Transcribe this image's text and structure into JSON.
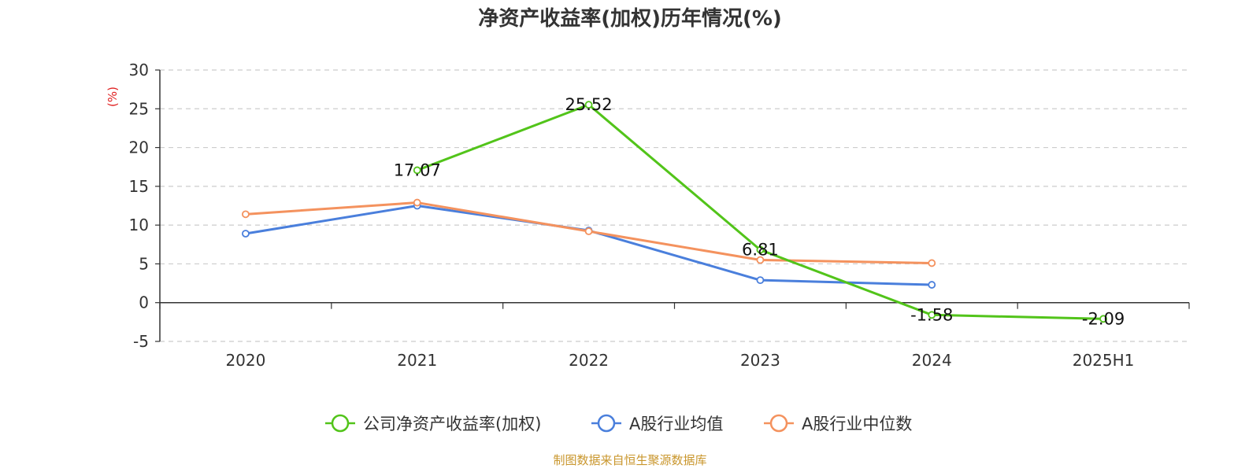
{
  "source": "制图数据来自恒生聚源数据库",
  "colors": {
    "ylabel": "#e02020",
    "source": "#c9962c",
    "axis": "#333333",
    "grid": "#cccccc"
  },
  "chart_data": {
    "type": "line",
    "title": "净资产收益率(加权)历年情况(%)",
    "xlabel": "",
    "ylabel": "(%)",
    "categories": [
      "2020",
      "2021",
      "2022",
      "2023",
      "2024",
      "2025H1"
    ],
    "ylim": [
      -5,
      30
    ],
    "yticks": [
      -5,
      0,
      5,
      10,
      15,
      20,
      25,
      30
    ],
    "grid": true,
    "legend_position": "bottom-center",
    "series": [
      {
        "name": "公司净资产收益率(加权)",
        "color": "#52c41a",
        "values": [
          null,
          17.07,
          25.52,
          6.81,
          -1.58,
          -2.09
        ],
        "labels": [
          "",
          "17.07",
          "25.52",
          "6.81",
          "-1.58",
          "-2.09"
        ]
      },
      {
        "name": "A股行业均值",
        "color": "#4a7fdc",
        "values": [
          8.9,
          12.5,
          9.3,
          2.9,
          2.3,
          null
        ]
      },
      {
        "name": "A股行业中位数",
        "color": "#f4925e",
        "values": [
          11.4,
          12.9,
          9.2,
          5.5,
          5.1,
          null
        ]
      }
    ]
  }
}
